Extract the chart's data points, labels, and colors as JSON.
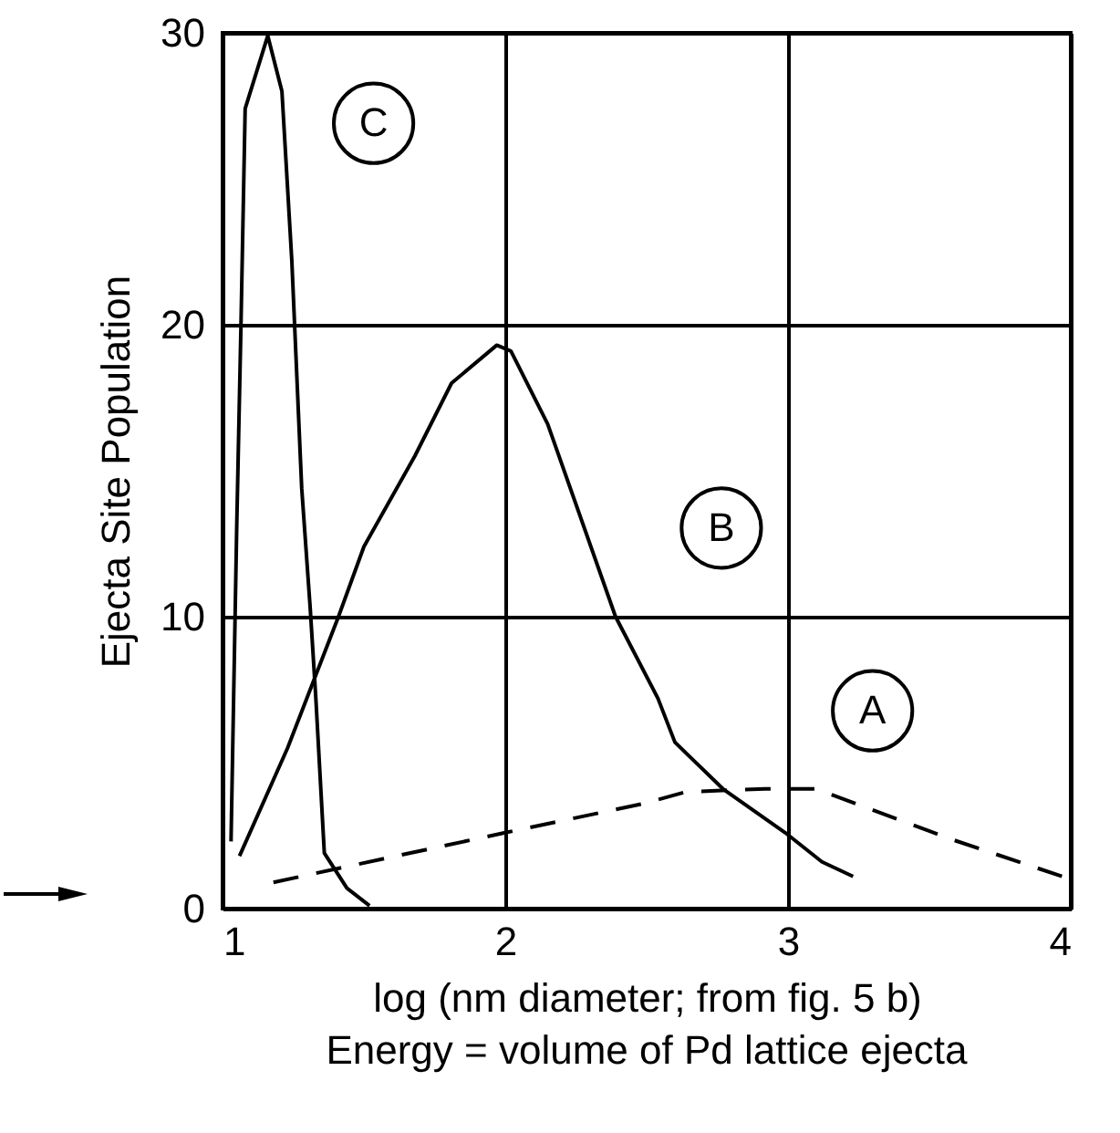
{
  "chart_data": {
    "type": "line",
    "xlabel": "log (nm diameter; from fig. 5 b)",
    "ylabel": "Ejecta Site Population",
    "annotations": [
      "Energy = volume of Pd lattice ejecta"
    ],
    "series": [
      {
        "name": "A",
        "color": "#000000",
        "line_style": "dashed",
        "x": [
          1.18,
          2.0,
          2.49,
          2.64,
          2.92,
          3.1,
          3.57,
          3.97
        ],
        "values": [
          0.9,
          2.6,
          3.6,
          4.0,
          4.1,
          4.1,
          2.4,
          1.1
        ]
      },
      {
        "name": "B",
        "color": "#000000",
        "line_style": "solid",
        "x": [
          1.06,
          1.23,
          1.41,
          1.5,
          1.68,
          1.81,
          1.97,
          2.02,
          2.15,
          2.39,
          2.54,
          2.6,
          2.77,
          2.99,
          3.12,
          3.23
        ],
        "values": [
          1.8,
          5.5,
          10,
          12.4,
          15.5,
          18,
          19.3,
          19.1,
          16.6,
          10,
          7.2,
          5.7,
          4.1,
          2.6,
          1.6,
          1.1
        ]
      },
      {
        "name": "C",
        "color": "#000000",
        "line_style": "solid",
        "x": [
          1.03,
          1.05,
          1.065,
          1.08,
          1.16,
          1.21,
          1.245,
          1.28,
          1.31,
          1.33,
          1.36,
          1.44,
          1.52
        ],
        "values": [
          2.3,
          13,
          19.9,
          27.4,
          29.9,
          28,
          22.2,
          14.4,
          10.3,
          7.2,
          1.9,
          0.7,
          0.1
        ]
      }
    ],
    "xlim": [
      1,
      4
    ],
    "xticks": [
      1,
      2,
      3,
      4
    ],
    "ylim": [
      0,
      30
    ],
    "yticks": [
      0,
      10,
      20,
      30
    ],
    "grid": true
  }
}
